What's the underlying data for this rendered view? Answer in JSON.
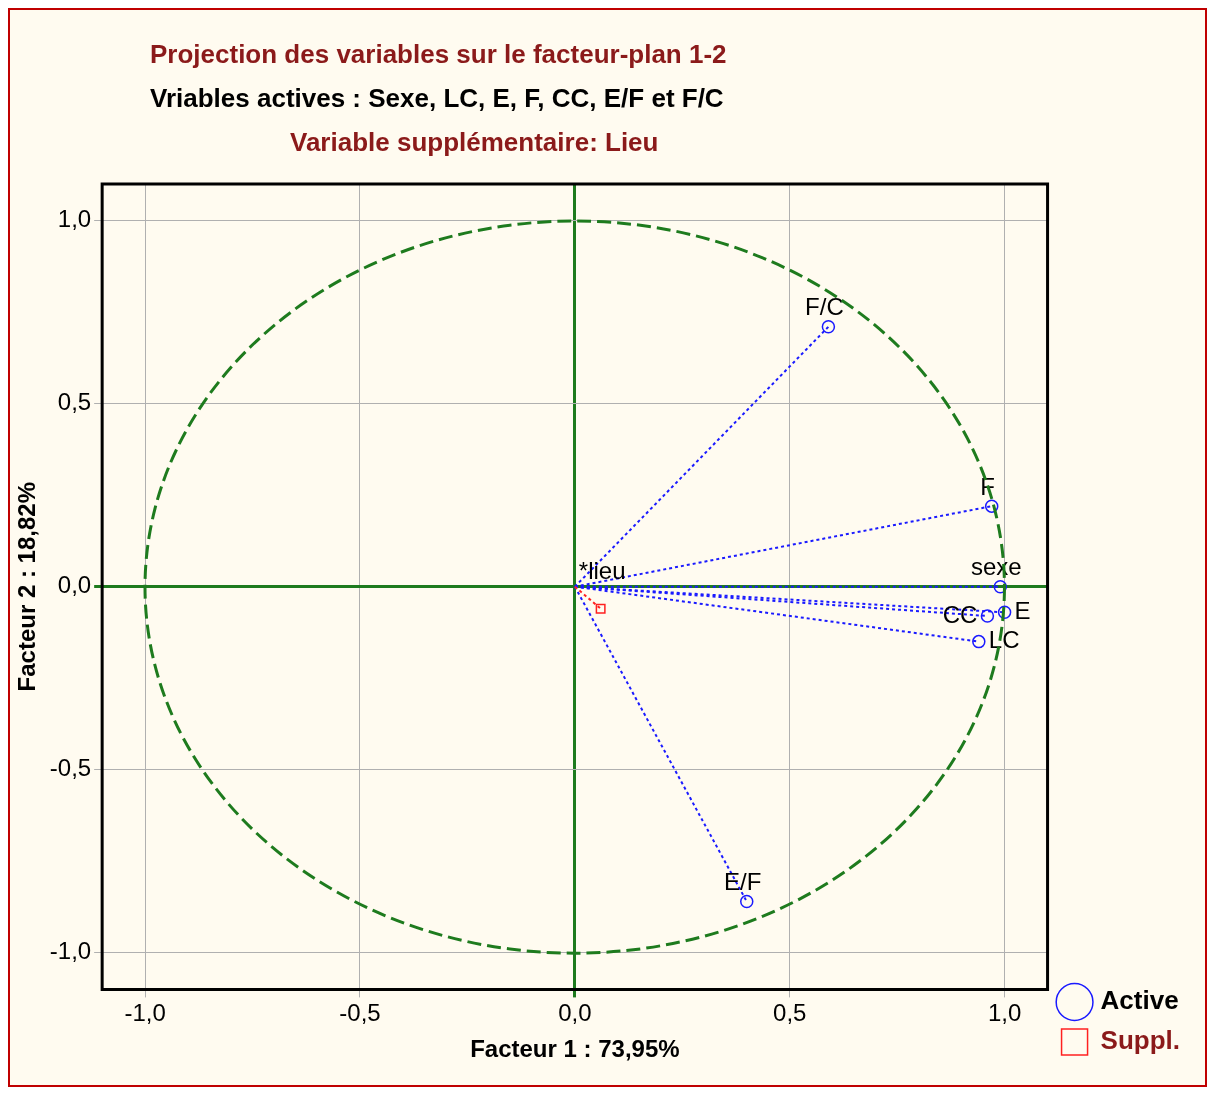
{
  "chart_data": {
    "type": "scatter",
    "title": "Projection des variables sur le facteur-plan 1-2",
    "subtitle": "Vriables actives : Sexe, LC, E, F, CC, E/F et F/C",
    "xlabel": "Facteur 1 : 73,95%",
    "ylabel": "Facteur 2 : 18,82%",
    "annotations": [
      "Variable supplémentaire: Lieu",
      {
        "text": "F/C",
        "x": 0.59,
        "y": 0.71
      },
      {
        "text": "F",
        "x": 0.97,
        "y": 0.22
      },
      {
        "text": "sexe",
        "x": 0.99,
        "y": 0.0
      },
      {
        "text": "E",
        "x": 1.0,
        "y": -0.07
      },
      {
        "text": "CC",
        "x": 0.96,
        "y": -0.08
      },
      {
        "text": "LC",
        "x": 0.94,
        "y": -0.15
      },
      {
        "text": "E/F",
        "x": 0.4,
        "y": -0.86
      },
      {
        "text": "*lieu",
        "x": 0.06,
        "y": -0.06
      }
    ],
    "series": [
      {
        "name": "Active",
        "color": "#1a1aff",
        "marker": "circle",
        "line_style": "dotted",
        "x": [
          0.59,
          0.97,
          0.99,
          1.0,
          0.96,
          0.94,
          0.4
        ],
        "values": [
          0.71,
          0.22,
          0.0,
          -0.07,
          -0.08,
          -0.15,
          -0.86
        ]
      },
      {
        "name": "Suppl.",
        "color": "#ff2020",
        "marker": "square",
        "line_style": "dotted",
        "x": [
          0.06
        ],
        "values": [
          -0.06
        ]
      }
    ],
    "xlim": [
      -1.1,
      1.1
    ],
    "ylim": [
      -1.1,
      1.1
    ],
    "xticks": [
      {
        "value": -1,
        "label": "-1,0"
      },
      {
        "value": -0.5,
        "label": "-0,5"
      },
      {
        "value": 0,
        "label": "0,0"
      },
      {
        "value": 0.5,
        "label": "0,5"
      },
      {
        "value": 1,
        "label": "1,0"
      }
    ],
    "yticks": [
      {
        "value": -1,
        "label": "-1,0"
      },
      {
        "value": -0.5,
        "label": "-0,5"
      },
      {
        "value": 0,
        "label": "0,0"
      },
      {
        "value": 0.5,
        "label": "0,5"
      },
      {
        "value": 1,
        "label": "1,0"
      }
    ],
    "grid": true,
    "legend": "bottom right"
  }
}
